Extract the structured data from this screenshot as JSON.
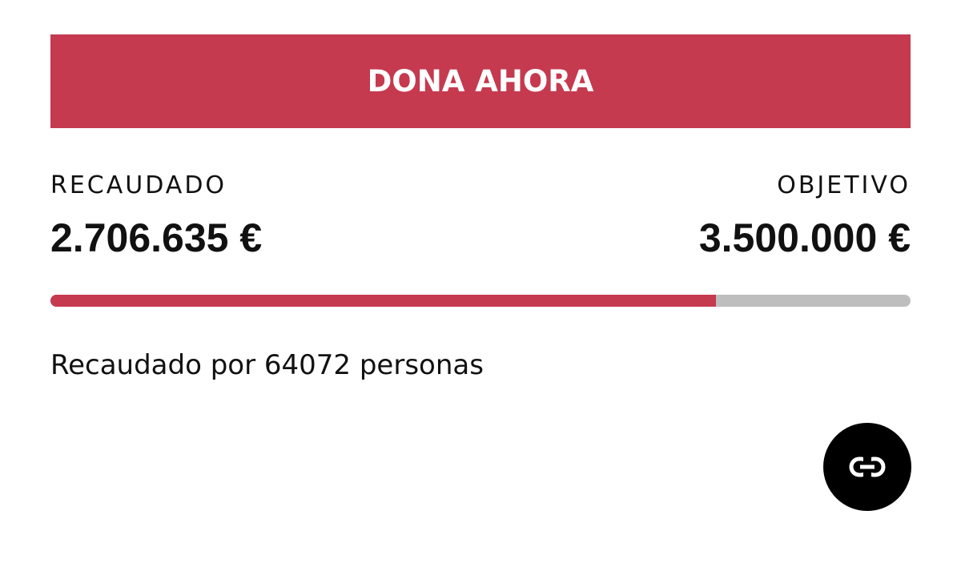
{
  "button": {
    "label": "DONA AHORA"
  },
  "raised": {
    "title": "RECAUDADO",
    "value": 2706635,
    "label": "2.706.635 €"
  },
  "goal": {
    "title": "OBJETIVO",
    "value": 3500000,
    "label": "3.500.000 €"
  },
  "donors_text": "Recaudado por 64072 personas"
}
